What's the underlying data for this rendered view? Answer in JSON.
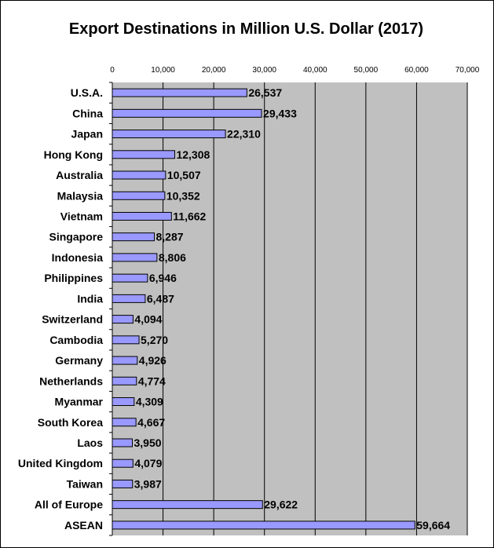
{
  "chart_data": {
    "type": "bar",
    "orientation": "horizontal",
    "title": "Export Destinations in Million U.S. Dollar (2017)",
    "categories": [
      "U.S.A.",
      "China",
      "Japan",
      "Hong Kong",
      "Australia",
      "Malaysia",
      "Vietnam",
      "Singapore",
      "Indonesia",
      "Philippines",
      "India",
      "Switzerland",
      "Cambodia",
      "Germany",
      "Netherlands",
      "Myanmar",
      "South Korea",
      "Laos",
      "United Kingdom",
      "Taiwan",
      "All of Europe",
      "ASEAN"
    ],
    "values": [
      26537,
      29433,
      22310,
      12308,
      10507,
      10352,
      11662,
      8287,
      8806,
      6946,
      6487,
      4094,
      5270,
      4926,
      4774,
      4309,
      4667,
      3950,
      4079,
      3987,
      29622,
      59664
    ],
    "value_labels": [
      "26,537",
      "29,433",
      "22,310",
      "12,308",
      "10,507",
      "10,352",
      "11,662",
      "8,287",
      "8,806",
      "6,946",
      "6,487",
      "4,094",
      "5,270",
      "4,926",
      "4,774",
      "4,309",
      "4,667",
      "3,950",
      "4,079",
      "3,987",
      "29,622",
      "59,664"
    ],
    "xticks": [
      0,
      10000,
      20000,
      30000,
      40000,
      50000,
      60000,
      70000
    ],
    "xtick_labels": [
      "0",
      "10,000",
      "20,000",
      "30,000",
      "40,000",
      "50,000",
      "60,000",
      "70,000"
    ],
    "xlim": [
      0,
      70000
    ],
    "xaxis_position": "top",
    "grid": true,
    "legend": "none",
    "colors": {
      "bar_fill": "#9999ff",
      "bar_stroke": "#000000",
      "plot_background": "#c0c0c0",
      "gridline": "#000000"
    }
  }
}
